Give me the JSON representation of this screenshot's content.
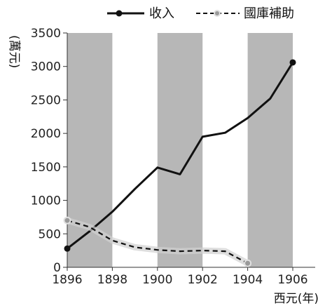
{
  "chart_data": {
    "type": "line",
    "x": [
      1896,
      1897,
      1898,
      1899,
      1900,
      1901,
      1902,
      1903,
      1904,
      1905,
      1906
    ],
    "xticks": [
      "1896",
      "1898",
      "1900",
      "1902",
      "1904",
      "1906"
    ],
    "yticks": [
      "0",
      "500",
      "1000",
      "1500",
      "2000",
      "2500",
      "3000",
      "3500"
    ],
    "xlim": [
      1896,
      1906.6
    ],
    "ylim": [
      0,
      3500
    ],
    "xlabel": "西元(年)",
    "ylabel": "(萬元)",
    "shaded_bands": [
      [
        1896,
        1898
      ],
      [
        1900,
        1902
      ],
      [
        1904,
        1906
      ]
    ],
    "band_color": "#b7b7b7",
    "series": [
      {
        "name": "收入",
        "style": "solid",
        "color": "#111111",
        "x": [
          1896,
          1897,
          1898,
          1899,
          1900,
          1901,
          1902,
          1903,
          1904,
          1905,
          1906
        ],
        "values": [
          280,
          540,
          830,
          1170,
          1490,
          1390,
          1950,
          2010,
          2230,
          2520,
          3060
        ]
      },
      {
        "name": "國庫補助",
        "style": "dashed",
        "color": "#111111",
        "x": [
          1896,
          1897,
          1898,
          1899,
          1900,
          1901,
          1902,
          1903,
          1904
        ],
        "values": [
          700,
          600,
          400,
          300,
          260,
          240,
          250,
          240,
          60
        ]
      }
    ],
    "legend_position": "top-right",
    "grid": false
  }
}
